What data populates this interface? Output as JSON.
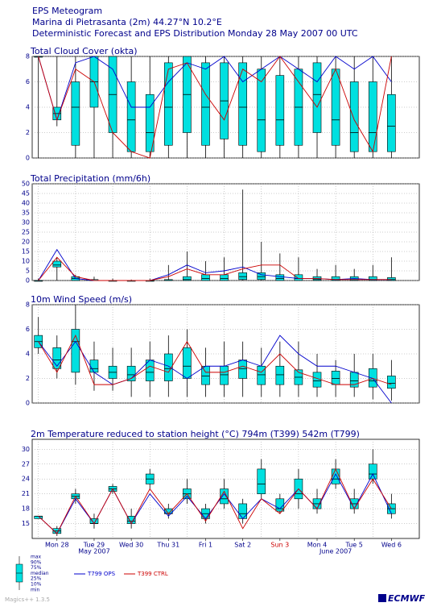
{
  "header": {
    "title": "EPS Meteogram",
    "location": "Marina di Pietrasanta (2m) 44.27°N 10.2°E",
    "subtitle": "Deterministic Forecast and EPS Distribution Monday 28 May 2007 00 UTC"
  },
  "chart_data": [
    {
      "type": "boxplot",
      "title": "Total Cloud Cover (okta)",
      "x": [
        0,
        12,
        24,
        36,
        48,
        60,
        72,
        84,
        96,
        108,
        120,
        132,
        144,
        156,
        168,
        180,
        192,
        204,
        216,
        228
      ],
      "min": [
        0,
        2.5,
        0,
        0,
        0,
        0,
        0,
        0,
        0,
        0,
        0,
        0,
        0,
        0,
        0,
        0,
        0,
        0,
        0,
        0
      ],
      "p25": [
        8,
        3,
        1,
        4,
        2,
        0.5,
        0.5,
        1,
        2,
        1,
        1.5,
        1,
        0.5,
        1,
        1,
        2,
        1,
        0.5,
        0.5,
        0.5
      ],
      "median": [
        8,
        3.5,
        4,
        6,
        5,
        3,
        2,
        4,
        5,
        4,
        4.5,
        4,
        3,
        3,
        4,
        5,
        3,
        2,
        2,
        2.5
      ],
      "p75": [
        8,
        4,
        6,
        8,
        8,
        6,
        5,
        7.5,
        8,
        7.5,
        7.5,
        7.5,
        7,
        6.5,
        7,
        7.5,
        7,
        6,
        6,
        5
      ],
      "max": [
        8,
        8,
        8,
        8,
        8,
        8,
        8,
        8,
        8,
        8,
        8,
        8,
        8,
        8,
        8,
        8,
        8,
        8,
        8,
        8
      ],
      "lines": [
        {
          "color": "#0000cc",
          "values": [
            8,
            3,
            7.5,
            8,
            7,
            4,
            4,
            6,
            7.5,
            7,
            8,
            6,
            7,
            8,
            7,
            6,
            8,
            7,
            8,
            6
          ]
        },
        {
          "color": "#cc0000",
          "values": [
            8,
            3,
            7,
            6,
            2,
            0.5,
            0,
            7,
            7.5,
            5,
            3,
            7,
            6,
            8,
            6,
            4,
            7,
            3,
            0.5,
            8
          ]
        }
      ],
      "xlim": [
        -4,
        246
      ],
      "ylim": [
        0,
        8
      ],
      "yticks": [
        0,
        2,
        4,
        6,
        8
      ],
      "box_color": "#00e0e0"
    },
    {
      "type": "boxplot",
      "title": "Total Precipitation (mm/6h)",
      "x": [
        0,
        12,
        24,
        36,
        48,
        60,
        72,
        84,
        96,
        108,
        120,
        132,
        144,
        156,
        168,
        180,
        192,
        204,
        216,
        228
      ],
      "min": [
        0,
        0,
        0,
        0,
        0,
        0,
        0,
        0,
        0,
        0,
        0,
        0,
        0,
        0,
        0,
        0,
        0,
        0,
        0,
        0
      ],
      "p25": [
        0,
        7,
        0,
        0,
        0,
        0,
        0,
        0,
        0,
        0,
        0,
        0.5,
        0.5,
        0,
        0,
        0,
        0,
        0,
        0,
        0
      ],
      "median": [
        0,
        8,
        1,
        0,
        0,
        0,
        0,
        0,
        0.5,
        1,
        1,
        2,
        2,
        1,
        1,
        0.5,
        0.5,
        0.5,
        0.5,
        0.5
      ],
      "p75": [
        0,
        10,
        2,
        0.5,
        0,
        0,
        0,
        0.5,
        2,
        3,
        3,
        4,
        4,
        3,
        3,
        2,
        2,
        2,
        2,
        1.5
      ],
      "max": [
        1,
        12,
        3,
        2,
        1,
        0.5,
        1,
        8,
        15,
        10,
        12,
        47,
        20,
        14,
        12,
        6,
        8,
        6,
        8,
        12
      ],
      "lines": [
        {
          "color": "#0000cc",
          "values": [
            0,
            16,
            1,
            0,
            0,
            0,
            0,
            3,
            8,
            4,
            5,
            7,
            3,
            2,
            1,
            1,
            0.5,
            1,
            0.5,
            0.5
          ]
        },
        {
          "color": "#cc0000",
          "values": [
            0,
            12,
            2,
            0,
            0,
            0,
            0,
            2,
            6,
            3,
            3,
            6,
            8,
            8,
            1,
            1,
            0.5,
            0.5,
            0.5,
            0.5
          ]
        }
      ],
      "xlim": [
        -4,
        246
      ],
      "ylim": [
        0,
        50
      ],
      "yticks": [
        0,
        5,
        10,
        15,
        20,
        25,
        30,
        35,
        40,
        45,
        50
      ],
      "box_color": "#00e0e0"
    },
    {
      "type": "boxplot",
      "title": "10m Wind Speed (m/s)",
      "x": [
        0,
        12,
        24,
        36,
        48,
        60,
        72,
        84,
        96,
        108,
        120,
        132,
        144,
        156,
        168,
        180,
        192,
        204,
        216,
        228
      ],
      "min": [
        4,
        2,
        1.5,
        1,
        1,
        0.5,
        0.5,
        0.5,
        0.5,
        0.5,
        0.5,
        0.5,
        0.5,
        0.5,
        0.5,
        0.5,
        0.5,
        0.5,
        0.3,
        0.2
      ],
      "p25": [
        4.5,
        2.8,
        2.5,
        2.5,
        2,
        1.8,
        1.8,
        1.8,
        2,
        1.5,
        1.5,
        2,
        1.5,
        1.5,
        1.5,
        1.3,
        1.5,
        1.3,
        1.3,
        1.2
      ],
      "median": [
        5,
        3.5,
        5,
        2.8,
        2.5,
        2.3,
        2.5,
        2.8,
        3,
        2.2,
        2.3,
        2.8,
        2.3,
        2.3,
        2.1,
        1.8,
        2,
        1.8,
        1.8,
        1.6
      ],
      "p75": [
        5.5,
        4.5,
        6,
        3.5,
        3,
        3,
        3.5,
        4,
        4.5,
        3,
        3,
        3.5,
        3,
        3,
        2.7,
        2.5,
        2.6,
        2.5,
        2.8,
        2.2
      ],
      "max": [
        7,
        5.5,
        8,
        5,
        4.5,
        4.5,
        5,
        5.5,
        6,
        4.5,
        5,
        5,
        4.5,
        5,
        5,
        4,
        3.5,
        4,
        4,
        3.5
      ],
      "lines": [
        {
          "color": "#0000cc",
          "values": [
            5,
            3,
            5,
            2.5,
            1.5,
            2,
            3.5,
            3,
            2,
            3,
            3,
            3.5,
            3,
            5.5,
            4,
            3,
            3,
            2.5,
            2,
            0
          ]
        },
        {
          "color": "#cc0000",
          "values": [
            5,
            2.5,
            5.5,
            1.5,
            1.5,
            2,
            3,
            2.5,
            5,
            2.5,
            2.5,
            3,
            2.5,
            4,
            2.5,
            2,
            1.5,
            1.5,
            2,
            1.5
          ]
        }
      ],
      "xlim": [
        -4,
        246
      ],
      "ylim": [
        0,
        8
      ],
      "yticks": [
        0,
        2,
        4,
        6,
        8
      ],
      "box_color": "#00e0e0"
    },
    {
      "type": "boxplot",
      "title": "2m Temperature reduced to station height (°C) 794m (T399) 542m (T799)",
      "x": [
        0,
        12,
        24,
        36,
        48,
        60,
        72,
        84,
        96,
        108,
        120,
        132,
        144,
        156,
        168,
        180,
        192,
        204,
        216,
        228
      ],
      "min": [
        16,
        12.5,
        19,
        14,
        21,
        14,
        22,
        16,
        19,
        15,
        18,
        15,
        20,
        17,
        18,
        17,
        22,
        17,
        23,
        16
      ],
      "p25": [
        16,
        13,
        20,
        15,
        21.5,
        15,
        23,
        17,
        20,
        16,
        19,
        16,
        21,
        17.5,
        20,
        18,
        23,
        18,
        24,
        17
      ],
      "median": [
        16.5,
        13.5,
        20.5,
        15,
        22,
        15.5,
        24,
        17,
        21,
        17,
        20,
        17,
        23,
        18,
        21,
        19,
        24,
        19,
        25,
        18
      ],
      "p75": [
        16.5,
        14,
        21,
        16,
        22.5,
        16.5,
        25,
        18,
        22,
        18,
        22,
        19,
        26,
        20,
        24,
        20,
        26,
        20,
        27,
        19
      ],
      "max": [
        16.5,
        14.5,
        22,
        17,
        23,
        18,
        26,
        19,
        24,
        19,
        24,
        20,
        28,
        21,
        26,
        22,
        28,
        22,
        30,
        21
      ],
      "lines": [
        {
          "color": "#0000cc",
          "values": [
            16.5,
            13,
            20,
            15,
            22,
            15,
            21,
            16.5,
            20.5,
            16,
            21,
            16,
            20,
            18,
            22,
            18,
            25,
            18,
            25,
            17
          ]
        },
        {
          "color": "#cc0000",
          "values": [
            16.5,
            13,
            20.5,
            15,
            22,
            15,
            22,
            17,
            21,
            15.5,
            21.5,
            14,
            20,
            17,
            22,
            18,
            26,
            18,
            24,
            18
          ]
        }
      ],
      "xlim": [
        -4,
        246
      ],
      "ylim": [
        12,
        32
      ],
      "yticks": [
        15,
        18,
        21,
        24,
        27,
        30
      ],
      "box_color": "#00e0e0",
      "xticks": [
        {
          "value": 12,
          "label": "Mon 28"
        },
        {
          "value": 36,
          "label": "Tue 29"
        },
        {
          "value": 60,
          "label": "Wed 30"
        },
        {
          "value": 84,
          "label": "Thu 31"
        },
        {
          "value": 108,
          "label": "Fri 1"
        },
        {
          "value": 132,
          "label": "Sat 2"
        },
        {
          "value": 156,
          "label": "Sun 3",
          "color": "#cc0000"
        },
        {
          "value": 180,
          "label": "Mon 4"
        },
        {
          "value": 204,
          "label": "Tue 5"
        },
        {
          "value": 228,
          "label": "Wed 6"
        }
      ],
      "months": [
        {
          "value": 36,
          "label": "May 2007"
        },
        {
          "value": 192,
          "label": "June 2007"
        }
      ]
    }
  ],
  "legend": {
    "series": [
      {
        "name": "T799 OPS",
        "color": "#0000cc"
      },
      {
        "name": "T399 CTRL",
        "color": "#cc0000"
      }
    ],
    "box_labels": [
      "max",
      "90%",
      "75%",
      "median",
      "25%",
      "10%",
      "min"
    ]
  },
  "footer": {
    "version": "Magics++ 1.3.5",
    "logo": "ECMWF"
  }
}
